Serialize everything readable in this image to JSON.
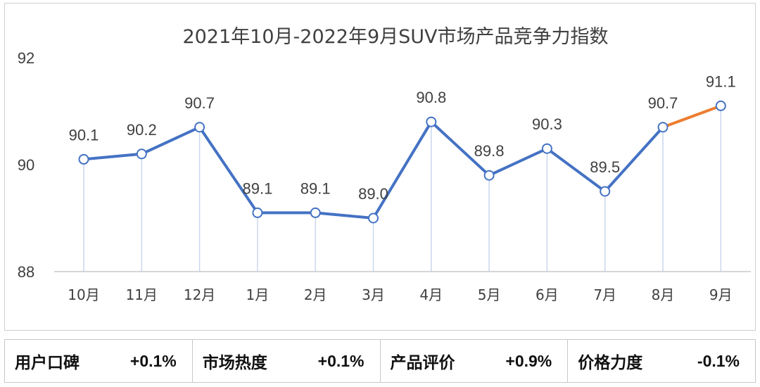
{
  "chart_data": {
    "type": "line",
    "title": "2021年10月-2022年9月SUV市场产品竞争力指数",
    "categories": [
      "10月",
      "11月",
      "12月",
      "1月",
      "2月",
      "3月",
      "4月",
      "5月",
      "6月",
      "7月",
      "8月",
      "9月"
    ],
    "series": [
      {
        "name": "SUV市场产品竞争力指数",
        "values": [
          90.1,
          90.2,
          90.7,
          89.1,
          89.1,
          89.0,
          90.8,
          89.8,
          90.3,
          89.5,
          90.7,
          91.1
        ],
        "data_labels": [
          "90.1",
          "90.2",
          "90.7",
          "89.1",
          "89.1",
          "89.0",
          "90.8",
          "89.8",
          "90.3",
          "89.5",
          "90.7",
          "91.1"
        ]
      }
    ],
    "ylim": [
      88,
      92
    ],
    "yticks": [
      88,
      90,
      92
    ],
    "ytick_labels": [
      "88",
      "90",
      "92"
    ],
    "xlabel": "",
    "ylabel": "",
    "grid": false,
    "colors": {
      "line": "#4472C4",
      "highlight_segment": "#ED7D31",
      "drop_line": "#C9D7EE",
      "axis": "#c8c8c8",
      "text": "#404040"
    }
  },
  "metrics": [
    {
      "label": "用户口碑",
      "value": "+0.1%"
    },
    {
      "label": "市场热度",
      "value": "+0.1%"
    },
    {
      "label": "产品评价",
      "value": "+0.9%"
    },
    {
      "label": "价格力度",
      "value": "-0.1%"
    }
  ]
}
